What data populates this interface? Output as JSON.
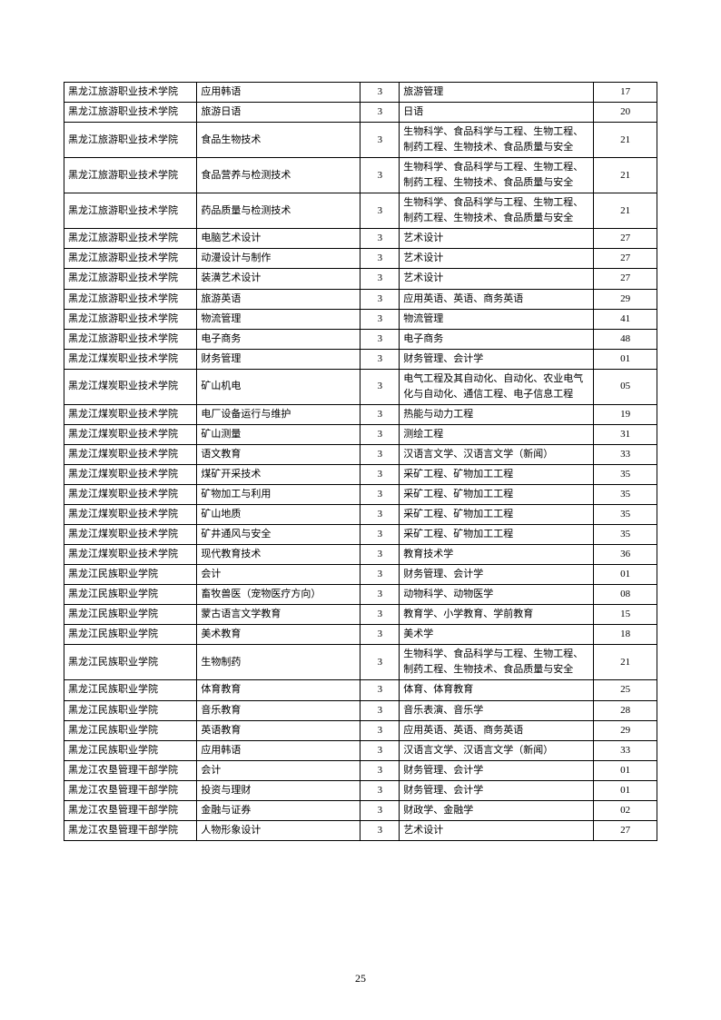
{
  "table": {
    "type": "table",
    "border_color": "#000000",
    "background_color": "#ffffff",
    "font_size": 11,
    "columns": [
      {
        "width": 130,
        "align": "left"
      },
      {
        "width": 160,
        "align": "left"
      },
      {
        "width": 38,
        "align": "center"
      },
      {
        "width": 190,
        "align": "left"
      },
      {
        "width": 62,
        "align": "center"
      }
    ],
    "rows": [
      [
        "黑龙江旅游职业技术学院",
        "应用韩语",
        "3",
        "旅游管理",
        "17"
      ],
      [
        "黑龙江旅游职业技术学院",
        "旅游日语",
        "3",
        "日语",
        "20"
      ],
      [
        "黑龙江旅游职业技术学院",
        "食品生物技术",
        "3",
        "生物科学、食品科学与工程、生物工程、制药工程、生物技术、食品质量与安全",
        "21"
      ],
      [
        "黑龙江旅游职业技术学院",
        "食品营养与检测技术",
        "3",
        "生物科学、食品科学与工程、生物工程、制药工程、生物技术、食品质量与安全",
        "21"
      ],
      [
        "黑龙江旅游职业技术学院",
        "药品质量与检测技术",
        "3",
        "生物科学、食品科学与工程、生物工程、制药工程、生物技术、食品质量与安全",
        "21"
      ],
      [
        "黑龙江旅游职业技术学院",
        "电脑艺术设计",
        "3",
        "艺术设计",
        "27"
      ],
      [
        "黑龙江旅游职业技术学院",
        "动漫设计与制作",
        "3",
        "艺术设计",
        "27"
      ],
      [
        "黑龙江旅游职业技术学院",
        "装潢艺术设计",
        "3",
        "艺术设计",
        "27"
      ],
      [
        "黑龙江旅游职业技术学院",
        "旅游英语",
        "3",
        "应用英语、英语、商务英语",
        "29"
      ],
      [
        "黑龙江旅游职业技术学院",
        "物流管理",
        "3",
        "物流管理",
        "41"
      ],
      [
        "黑龙江旅游职业技术学院",
        "电子商务",
        "3",
        "电子商务",
        "48"
      ],
      [
        "黑龙江煤炭职业技术学院",
        "财务管理",
        "3",
        "财务管理、会计学",
        "01"
      ],
      [
        "黑龙江煤炭职业技术学院",
        "矿山机电",
        "3",
        "电气工程及其自动化、自动化、农业电气化与自动化、通信工程、电子信息工程",
        "05"
      ],
      [
        "黑龙江煤炭职业技术学院",
        "电厂设备运行与维护",
        "3",
        "热能与动力工程",
        "19"
      ],
      [
        "黑龙江煤炭职业技术学院",
        "矿山测量",
        "3",
        "测绘工程",
        "31"
      ],
      [
        "黑龙江煤炭职业技术学院",
        "语文教育",
        "3",
        "汉语言文学、汉语言文学（新闻）",
        "33"
      ],
      [
        "黑龙江煤炭职业技术学院",
        "煤矿开采技术",
        "3",
        "采矿工程、矿物加工工程",
        "35"
      ],
      [
        "黑龙江煤炭职业技术学院",
        "矿物加工与利用",
        "3",
        "采矿工程、矿物加工工程",
        "35"
      ],
      [
        "黑龙江煤炭职业技术学院",
        "矿山地质",
        "3",
        "采矿工程、矿物加工工程",
        "35"
      ],
      [
        "黑龙江煤炭职业技术学院",
        "矿井通风与安全",
        "3",
        "采矿工程、矿物加工工程",
        "35"
      ],
      [
        "黑龙江煤炭职业技术学院",
        "现代教育技术",
        "3",
        "教育技术学",
        "36"
      ],
      [
        "黑龙江民族职业学院",
        "会计",
        "3",
        "财务管理、会计学",
        "01"
      ],
      [
        "黑龙江民族职业学院",
        "畜牧兽医（宠物医疗方向）",
        "3",
        "动物科学、动物医学",
        "08"
      ],
      [
        "黑龙江民族职业学院",
        "蒙古语言文学教育",
        "3",
        "教育学、小学教育、学前教育",
        "15"
      ],
      [
        "黑龙江民族职业学院",
        "美术教育",
        "3",
        "美术学",
        "18"
      ],
      [
        "黑龙江民族职业学院",
        "生物制药",
        "3",
        "生物科学、食品科学与工程、生物工程、制药工程、生物技术、食品质量与安全",
        "21"
      ],
      [
        "黑龙江民族职业学院",
        "体育教育",
        "3",
        "体育、体育教育",
        "25"
      ],
      [
        "黑龙江民族职业学院",
        "音乐教育",
        "3",
        "音乐表演、音乐学",
        "28"
      ],
      [
        "黑龙江民族职业学院",
        "英语教育",
        "3",
        "应用英语、英语、商务英语",
        "29"
      ],
      [
        "黑龙江民族职业学院",
        "应用韩语",
        "3",
        "汉语言文学、汉语言文学（新闻）",
        "33"
      ],
      [
        "黑龙江农垦管理干部学院",
        "会计",
        "3",
        "财务管理、会计学",
        "01"
      ],
      [
        "黑龙江农垦管理干部学院",
        "投资与理财",
        "3",
        "财务管理、会计学",
        "01"
      ],
      [
        "黑龙江农垦管理干部学院",
        "金融与证券",
        "3",
        "财政学、金融学",
        "02"
      ],
      [
        "黑龙江农垦管理干部学院",
        "人物形象设计",
        "3",
        "艺术设计",
        "27"
      ]
    ]
  },
  "page_number": "25"
}
